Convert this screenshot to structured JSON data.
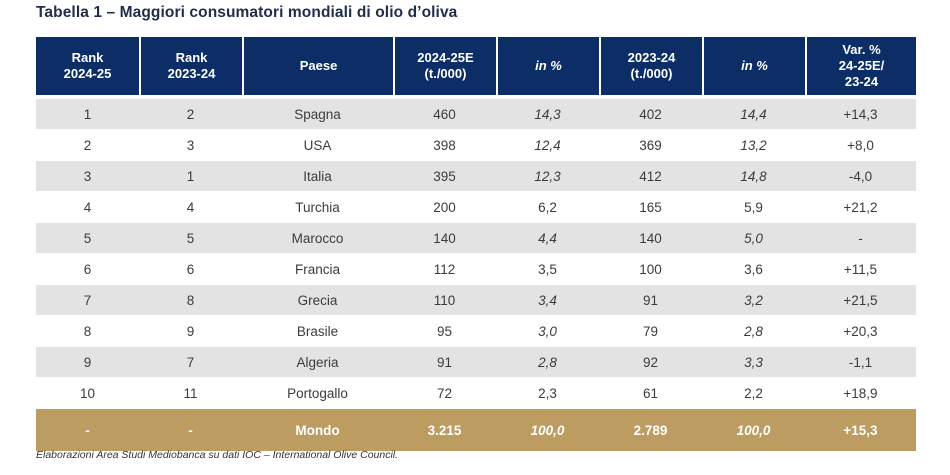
{
  "title": "Tabella 1 – Maggiori consumatori mondiali di olio d’oliva",
  "headers": {
    "rank_2024_l1": "Rank",
    "rank_2024_l2": "2024-25",
    "rank_2023_l1": "Rank",
    "rank_2023_l2": "2023-24",
    "paese": "Paese",
    "val_2024_l1": "2024-25E",
    "val_2024_l2": "(t./000)",
    "pct_2024": "in %",
    "val_2023_l1": "2023-24",
    "val_2023_l2": "(t./000)",
    "pct_2023": "in %",
    "var_l1": "Var. %",
    "var_l2": "24-25E/",
    "var_l3": "23-24"
  },
  "rows": [
    {
      "rank_2024": "1",
      "rank_2023": "2",
      "paese": "Spagna",
      "val_2024": "460",
      "pct_2024": "14,3",
      "val_2023": "402",
      "pct_2023": "14,4",
      "var": "+14,3"
    },
    {
      "rank_2024": "2",
      "rank_2023": "3",
      "paese": "USA",
      "val_2024": "398",
      "pct_2024": "12,4",
      "val_2023": "369",
      "pct_2023": "13,2",
      "var": "+8,0"
    },
    {
      "rank_2024": "3",
      "rank_2023": "1",
      "paese": "Italia",
      "val_2024": "395",
      "pct_2024": "12,3",
      "val_2023": "412",
      "pct_2023": "14,8",
      "var": "-4,0"
    },
    {
      "rank_2024": "4",
      "rank_2023": "4",
      "paese": "Turchia",
      "val_2024": "200",
      "pct_2024": "6,2",
      "val_2023": "165",
      "pct_2023": "5,9",
      "var": "+21,2"
    },
    {
      "rank_2024": "5",
      "rank_2023": "5",
      "paese": "Marocco",
      "val_2024": "140",
      "pct_2024": "4,4",
      "val_2023": "140",
      "pct_2023": "5,0",
      "var": "-"
    },
    {
      "rank_2024": "6",
      "rank_2023": "6",
      "paese": "Francia",
      "val_2024": "112",
      "pct_2024": "3,5",
      "val_2023": "100",
      "pct_2023": "3,6",
      "var": "+11,5"
    },
    {
      "rank_2024": "7",
      "rank_2023": "8",
      "paese": "Grecia",
      "val_2024": "110",
      "pct_2024": "3,4",
      "val_2023": "91",
      "pct_2023": "3,2",
      "var": "+21,5"
    },
    {
      "rank_2024": "8",
      "rank_2023": "9",
      "paese": "Brasile",
      "val_2024": "95",
      "pct_2024": "3,0",
      "val_2023": "79",
      "pct_2023": "2,8",
      "var": "+20,3"
    },
    {
      "rank_2024": "9",
      "rank_2023": "7",
      "paese": "Algeria",
      "val_2024": "91",
      "pct_2024": "2,8",
      "val_2023": "92",
      "pct_2023": "3,3",
      "var": "-1,1"
    },
    {
      "rank_2024": "10",
      "rank_2023": "11",
      "paese": "Portogallo",
      "val_2024": "72",
      "pct_2024": "2,3",
      "val_2023": "61",
      "pct_2023": "2,2",
      "var": "+18,9"
    }
  ],
  "total": {
    "rank_2024": "-",
    "rank_2023": "-",
    "paese": "Mondo",
    "val_2024": "3.215",
    "pct_2024": "100,0",
    "val_2023": "2.789",
    "pct_2023": "100,0",
    "var": "+15,3"
  },
  "source": "Elaborazioni Area Studi Mediobanca su dati IOC – International Olive Council.",
  "colors": {
    "header_bg": "#0c2d66",
    "shaded_row": "#e3e3e3",
    "total_bg": "#bd9c62"
  }
}
